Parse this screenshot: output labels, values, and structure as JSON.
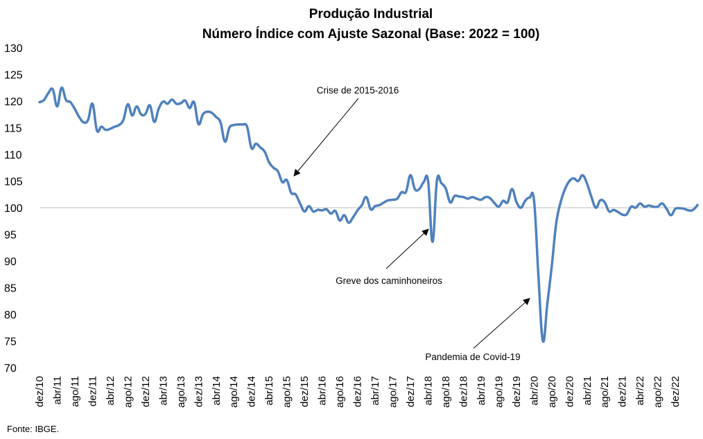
{
  "chart_data": {
    "type": "line",
    "title": "Produção Industrial",
    "subtitle": "Número Índice com Ajuste Sazonal (Base: 2022 = 100)",
    "ylim": [
      70,
      130
    ],
    "y_ticks": [
      70,
      75,
      80,
      85,
      90,
      95,
      100,
      105,
      110,
      115,
      120,
      125,
      130
    ],
    "reference_line": 100,
    "x_tick_labels": [
      "dez/10",
      "abr/11",
      "ago/11",
      "dez/11",
      "abr/12",
      "ago/12",
      "dez/12",
      "abr/13",
      "ago/13",
      "dez/13",
      "abr/14",
      "ago/14",
      "dez/14",
      "abr/15",
      "ago/15",
      "dez/15",
      "abr/16",
      "ago/16",
      "dez/16",
      "abr/17",
      "ago/17",
      "dez/17",
      "abr/18",
      "ago/18",
      "dez/18",
      "abr/19",
      "ago/19",
      "dez/19",
      "abr/20",
      "ago/20",
      "dez/20",
      "abr/21",
      "ago/21",
      "dez/21",
      "abr/22",
      "ago/22",
      "dez/22"
    ],
    "line_color": "#4f81bd",
    "series": [
      {
        "values": [
          119.8,
          120.2,
          121.5,
          122.2,
          119.0,
          122.5,
          120.2,
          119.8,
          118.5,
          117.0,
          116.0,
          116.5,
          119.5,
          114.5,
          115.2,
          114.6,
          114.8,
          115.2,
          115.5,
          116.5,
          119.4,
          117.3,
          119.0,
          117.5,
          117.6,
          119.2,
          116.1,
          118.6,
          119.9,
          119.5,
          120.3,
          119.5,
          119.6,
          120.1,
          118.7,
          119.8,
          115.7,
          117.5,
          118.0,
          117.8,
          117.0,
          116.0,
          112.4,
          115.0,
          115.5,
          115.6,
          115.6,
          115.2,
          111.2,
          112.0,
          111.3,
          110.5,
          108.5,
          107.5,
          106.8,
          104.8,
          105.2,
          102.8,
          102.5,
          100.8,
          99.3,
          100.3,
          99.3,
          99.6,
          99.5,
          99.7,
          98.9,
          99.4,
          97.6,
          98.6,
          97.2,
          98.2,
          99.5,
          100.5,
          102.0,
          99.7,
          100.3,
          100.5,
          101.0,
          101.4,
          101.5,
          101.7,
          102.9,
          103.0,
          106.1,
          103.5,
          103.5,
          104.8,
          105.0,
          93.6,
          105.1,
          104.6,
          103.6,
          101.0,
          102.2,
          102.1,
          102.0,
          101.7,
          102.0,
          101.7,
          101.5,
          102.0,
          101.8,
          100.9,
          100.2,
          101.3,
          101.0,
          103.5,
          101.1,
          100.0,
          101.3,
          101.9,
          101.3,
          87.0,
          75.0,
          82.0,
          89.0,
          97.0,
          101.0,
          103.5,
          105.0,
          105.5,
          105.0,
          106.1,
          104.5,
          102.0,
          100.0,
          101.4,
          101.0,
          99.3,
          99.6,
          99.2,
          98.7,
          98.8,
          100.2,
          100.0,
          100.8,
          100.2,
          100.4,
          100.2,
          100.2,
          100.8,
          99.8,
          98.6,
          99.8,
          99.9,
          99.8,
          99.5,
          99.6,
          100.5
        ]
      }
    ],
    "annotations": [
      {
        "text": "Crise de 2015-2016"
      },
      {
        "text": "Greve dos caminhoneiros"
      },
      {
        "text": "Pandemia de Covid-19"
      }
    ]
  },
  "source": "Fonte: IBGE."
}
